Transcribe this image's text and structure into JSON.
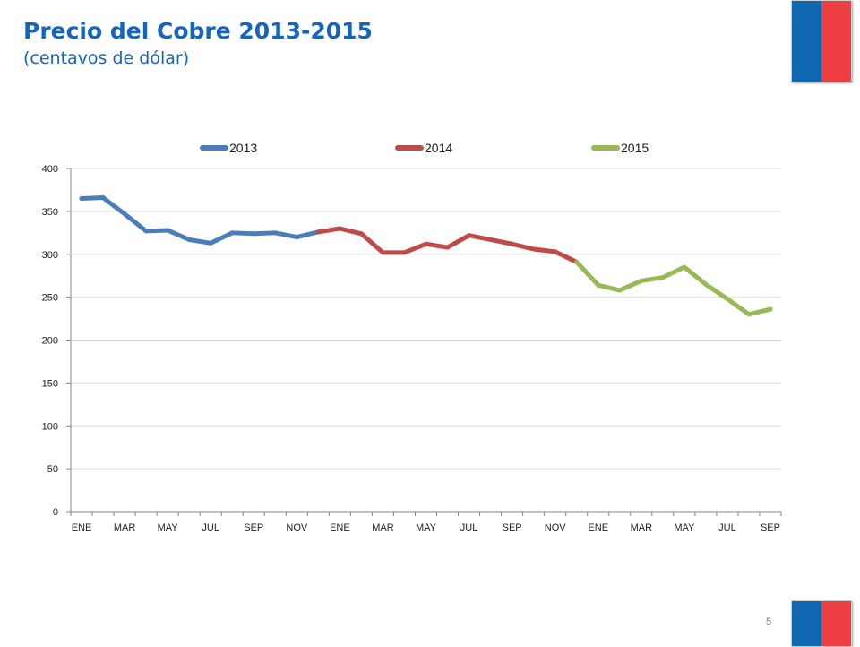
{
  "slide": {
    "title": "Precio del Cobre 2013-2015",
    "subtitle": "(centavos de dólar)",
    "page_number": "5"
  },
  "colors": {
    "title": "#1565c0",
    "flag_blue": "#0f67b1",
    "flag_red": "#ef3e42"
  },
  "chart_data": {
    "type": "line",
    "title": "",
    "xlabel": "",
    "ylabel": "",
    "ylim": [
      0,
      400
    ],
    "y_ticks": [
      0,
      50,
      100,
      150,
      200,
      250,
      300,
      350,
      400
    ],
    "grid": "horizontal",
    "legend_position": "top",
    "x_tick_labels": [
      "ENE",
      "MAR",
      "MAY",
      "JUL",
      "SEP",
      "NOV",
      "ENE",
      "MAR",
      "MAY",
      "JUL",
      "SEP",
      "NOV",
      "ENE",
      "MAR",
      "MAY",
      "JUL",
      "SEP"
    ],
    "series": [
      {
        "name": "2013",
        "color": "#4a7ebb",
        "months": [
          "ENE",
          "FEB",
          "MAR",
          "ABR",
          "MAY",
          "JUN",
          "JUL",
          "AGO",
          "SEP",
          "OCT",
          "NOV",
          "DIC"
        ],
        "values": [
          365,
          366,
          347,
          327,
          328,
          317,
          313,
          325,
          324,
          325,
          320,
          326
        ]
      },
      {
        "name": "2014",
        "color": "#be4b48",
        "months": [
          "ENE",
          "FEB",
          "MAR",
          "ABR",
          "MAY",
          "JUN",
          "JUL",
          "AGO",
          "SEP",
          "OCT",
          "NOV",
          "DIC"
        ],
        "values": [
          330,
          324,
          302,
          302,
          312,
          308,
          322,
          317,
          312,
          306,
          303,
          291
        ]
      },
      {
        "name": "2015",
        "color": "#98b954",
        "months": [
          "ENE",
          "FEB",
          "MAR",
          "ABR",
          "MAY",
          "JUN",
          "JUL",
          "AGO",
          "SEP"
        ],
        "values": [
          264,
          258,
          269,
          273,
          285,
          265,
          248,
          230,
          236
        ]
      }
    ]
  }
}
